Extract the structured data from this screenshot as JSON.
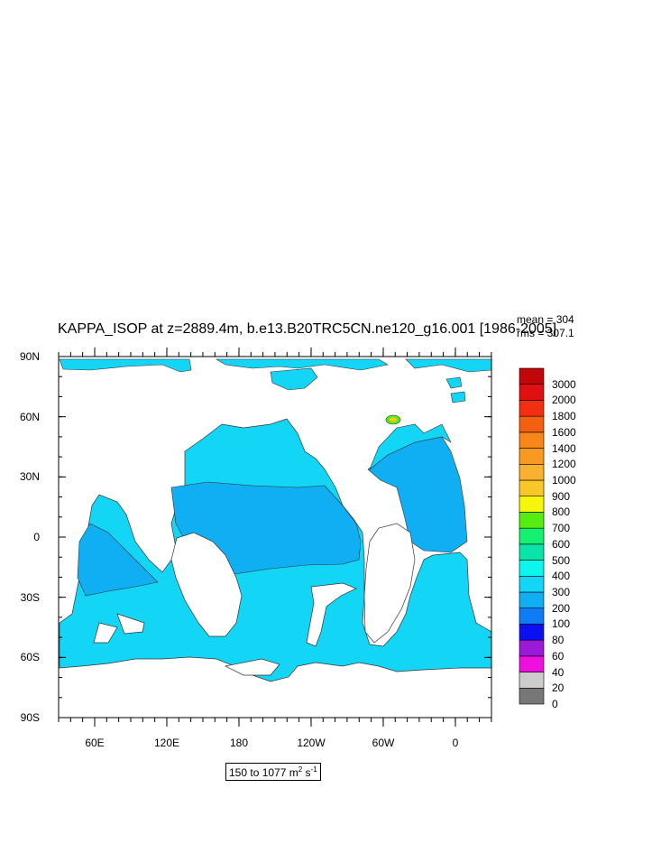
{
  "title": "KAPPA_ISOP at z=2889.4m, b.e13.B20TRC5CN.ne120_g16.001 [1986-2005]",
  "stats": {
    "mean": "mean = 304",
    "rms": "rms = 307.1"
  },
  "lat_ticks": [
    "90N",
    "60N",
    "30N",
    "0",
    "30S",
    "60S",
    "90S"
  ],
  "lon_ticks": [
    "60E",
    "120E",
    "180",
    "120W",
    "60W",
    "0"
  ],
  "range_label": {
    "text": "150 to 1077 m",
    "sup1": "2",
    "mid": " s",
    "sup2": "-1"
  },
  "colorbar": {
    "levels": [
      "0",
      "20",
      "40",
      "60",
      "80",
      "100",
      "200",
      "300",
      "400",
      "500",
      "600",
      "700",
      "800",
      "900",
      "1000",
      "1200",
      "1400",
      "1600",
      "1800",
      "2000",
      "3000"
    ],
    "colors": [
      "#777777",
      "#cccccc",
      "#ee10dd",
      "#9a1ad8",
      "#0a10f0",
      "#0f7cf5",
      "#10aef2",
      "#13d6f6",
      "#0cf6ee",
      "#0be4a8",
      "#14f070",
      "#55ee10",
      "#f6f60c",
      "#f8c828",
      "#fab030",
      "#f89a22",
      "#f88618",
      "#f46012",
      "#f42e10",
      "#e01010",
      "#c00808"
    ]
  },
  "colors": {
    "ocean_300_400": "#13d6f6",
    "ocean_200_300": "#10aef2",
    "land": "#ffffff"
  }
}
